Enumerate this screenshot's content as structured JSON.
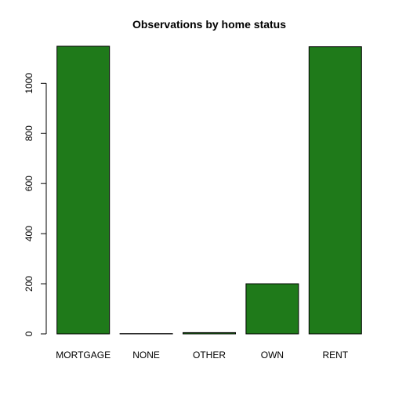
{
  "chart_data": {
    "type": "bar",
    "title": "Observations by home status",
    "xlabel": "",
    "ylabel": "",
    "categories": [
      "MORTGAGE",
      "NONE",
      "OTHER",
      "OWN",
      "RENT"
    ],
    "values": [
      1148,
      1,
      5,
      200,
      1146
    ],
    "ylim": [
      0,
      1148
    ],
    "yticks": [
      0,
      200,
      400,
      600,
      800,
      1000
    ],
    "ytick_labels": [
      "0",
      "200",
      "400",
      "600",
      "800",
      "1000"
    ],
    "grid": false,
    "legend": "none",
    "bar_color": "#1f7a1a",
    "bar_edge_color": "#000000"
  }
}
